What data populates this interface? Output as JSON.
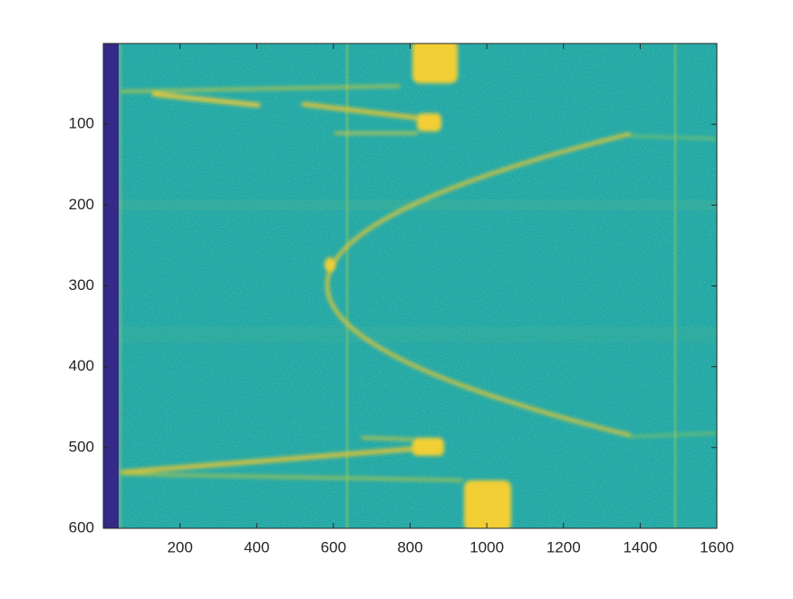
{
  "chart_data": {
    "type": "image",
    "xlim": [
      0,
      1600
    ],
    "ylim": [
      0,
      600
    ],
    "y_reversed": true,
    "xticks": [
      200,
      400,
      600,
      800,
      1000,
      1200,
      1400,
      1600
    ],
    "yticks": [
      100,
      200,
      300,
      400,
      500,
      600
    ]
  }
}
